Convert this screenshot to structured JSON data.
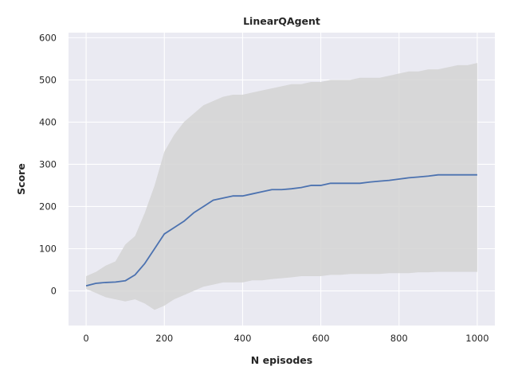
{
  "chart_data": {
    "type": "line",
    "title": "LinearQAgent",
    "xlabel": "N episodes",
    "ylabel": "Score",
    "xlim": [
      -45,
      1045
    ],
    "ylim": [
      -82,
      612
    ],
    "x_ticks": [
      0,
      200,
      400,
      600,
      800,
      1000
    ],
    "y_ticks": [
      0,
      100,
      200,
      300,
      400,
      500,
      600
    ],
    "grid": true,
    "background": "#eaeaf2",
    "series": [
      {
        "style": "mean-line",
        "color": "#4c72b0",
        "points": [
          [
            0,
            12
          ],
          [
            25,
            18
          ],
          [
            50,
            20
          ],
          [
            75,
            21
          ],
          [
            100,
            24
          ],
          [
            125,
            38
          ],
          [
            150,
            65
          ],
          [
            175,
            100
          ],
          [
            200,
            135
          ],
          [
            225,
            150
          ],
          [
            250,
            165
          ],
          [
            275,
            185
          ],
          [
            300,
            200
          ],
          [
            325,
            215
          ],
          [
            350,
            220
          ],
          [
            375,
            225
          ],
          [
            400,
            225
          ],
          [
            425,
            230
          ],
          [
            450,
            235
          ],
          [
            475,
            240
          ],
          [
            500,
            240
          ],
          [
            525,
            242
          ],
          [
            550,
            245
          ],
          [
            575,
            250
          ],
          [
            600,
            250
          ],
          [
            625,
            255
          ],
          [
            650,
            255
          ],
          [
            675,
            255
          ],
          [
            700,
            255
          ],
          [
            725,
            258
          ],
          [
            750,
            260
          ],
          [
            775,
            262
          ],
          [
            800,
            265
          ],
          [
            825,
            268
          ],
          [
            850,
            270
          ],
          [
            875,
            272
          ],
          [
            900,
            275
          ],
          [
            925,
            275
          ],
          [
            950,
            275
          ],
          [
            975,
            275
          ],
          [
            1000,
            275
          ]
        ]
      },
      {
        "style": "band",
        "color": "#d3d3d3",
        "upper": [
          [
            0,
            35
          ],
          [
            25,
            45
          ],
          [
            50,
            60
          ],
          [
            75,
            70
          ],
          [
            100,
            110
          ],
          [
            125,
            130
          ],
          [
            150,
            185
          ],
          [
            175,
            250
          ],
          [
            200,
            330
          ],
          [
            225,
            370
          ],
          [
            250,
            400
          ],
          [
            275,
            420
          ],
          [
            300,
            440
          ],
          [
            325,
            450
          ],
          [
            350,
            460
          ],
          [
            375,
            465
          ],
          [
            400,
            465
          ],
          [
            425,
            470
          ],
          [
            450,
            475
          ],
          [
            475,
            480
          ],
          [
            500,
            485
          ],
          [
            525,
            490
          ],
          [
            550,
            490
          ],
          [
            575,
            495
          ],
          [
            600,
            495
          ],
          [
            625,
            500
          ],
          [
            650,
            500
          ],
          [
            675,
            500
          ],
          [
            700,
            505
          ],
          [
            725,
            505
          ],
          [
            750,
            505
          ],
          [
            775,
            510
          ],
          [
            800,
            515
          ],
          [
            825,
            520
          ],
          [
            850,
            520
          ],
          [
            875,
            525
          ],
          [
            900,
            525
          ],
          [
            925,
            530
          ],
          [
            950,
            535
          ],
          [
            975,
            535
          ],
          [
            1000,
            540
          ]
        ],
        "lower": [
          [
            0,
            5
          ],
          [
            25,
            -5
          ],
          [
            50,
            -15
          ],
          [
            75,
            -20
          ],
          [
            100,
            -25
          ],
          [
            125,
            -20
          ],
          [
            150,
            -30
          ],
          [
            175,
            -45
          ],
          [
            200,
            -35
          ],
          [
            225,
            -20
          ],
          [
            250,
            -10
          ],
          [
            275,
            0
          ],
          [
            300,
            10
          ],
          [
            325,
            15
          ],
          [
            350,
            20
          ],
          [
            375,
            20
          ],
          [
            400,
            20
          ],
          [
            425,
            25
          ],
          [
            450,
            25
          ],
          [
            475,
            28
          ],
          [
            500,
            30
          ],
          [
            525,
            32
          ],
          [
            550,
            35
          ],
          [
            575,
            35
          ],
          [
            600,
            35
          ],
          [
            625,
            38
          ],
          [
            650,
            38
          ],
          [
            675,
            40
          ],
          [
            700,
            40
          ],
          [
            725,
            40
          ],
          [
            750,
            40
          ],
          [
            775,
            42
          ],
          [
            800,
            42
          ],
          [
            825,
            42
          ],
          [
            850,
            44
          ],
          [
            875,
            44
          ],
          [
            900,
            45
          ],
          [
            925,
            45
          ],
          [
            950,
            45
          ],
          [
            975,
            45
          ],
          [
            1000,
            45
          ]
        ]
      }
    ]
  }
}
